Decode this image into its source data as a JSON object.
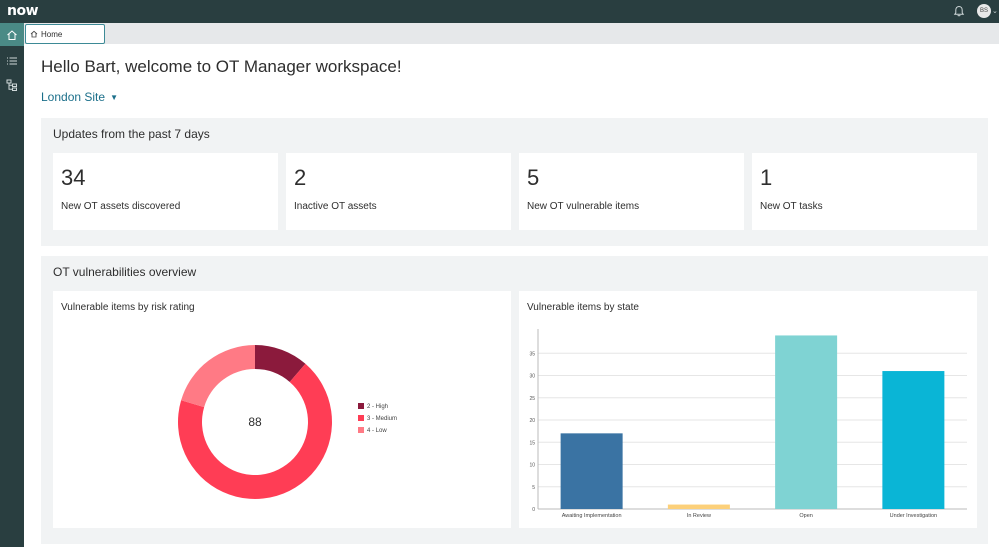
{
  "topbar": {
    "logo": "now",
    "bell_icon": "bell-icon",
    "avatar_initials": "BS",
    "avatar_caret": "⌄"
  },
  "rail": {
    "items": [
      {
        "icon": "home-icon",
        "active": true
      },
      {
        "icon": "list-icon",
        "active": false
      },
      {
        "icon": "hierarchy-icon",
        "active": false
      }
    ]
  },
  "tabs": [
    {
      "label": "Home",
      "icon": "home-icon",
      "active": true
    }
  ],
  "page": {
    "greeting": "Hello Bart, welcome to OT Manager workspace!",
    "site_selector": "London Site"
  },
  "updates": {
    "title": "Updates from the past 7 days",
    "stats": [
      {
        "value": "34",
        "label": "New OT assets discovered"
      },
      {
        "value": "2",
        "label": "Inactive OT assets"
      },
      {
        "value": "5",
        "label": "New OT vulnerable items"
      },
      {
        "value": "1",
        "label": "New OT tasks"
      }
    ]
  },
  "vulnerabilities": {
    "title": "OT vulnerabilities overview",
    "risk_card_title": "Vulnerable items by risk rating",
    "state_card_title": "Vulnerable items by state"
  },
  "chart_data": [
    {
      "type": "pie",
      "title": "Vulnerable items by risk rating",
      "center_label": "88",
      "legend_position": "right",
      "slices": [
        {
          "label": "2 - High",
          "value": 10,
          "color": "#8b1a3c"
        },
        {
          "label": "3 - Medium",
          "value": 60,
          "color": "#ff3d55"
        },
        {
          "label": "4 - Low",
          "value": 18,
          "color": "#ff7a85"
        }
      ]
    },
    {
      "type": "bar",
      "title": "Vulnerable items by state",
      "categories": [
        "Awaiting Implementation",
        "In Review",
        "Open",
        "Under Investigation"
      ],
      "values": [
        17,
        1,
        39,
        31
      ],
      "colors": [
        "#3a73a3",
        "#fcd07a",
        "#7fd3d3",
        "#0ab5d6"
      ],
      "yticks": [
        0,
        5,
        10,
        15,
        20,
        25,
        30,
        35
      ],
      "ylim": [
        0,
        40
      ],
      "grid": true
    }
  ]
}
